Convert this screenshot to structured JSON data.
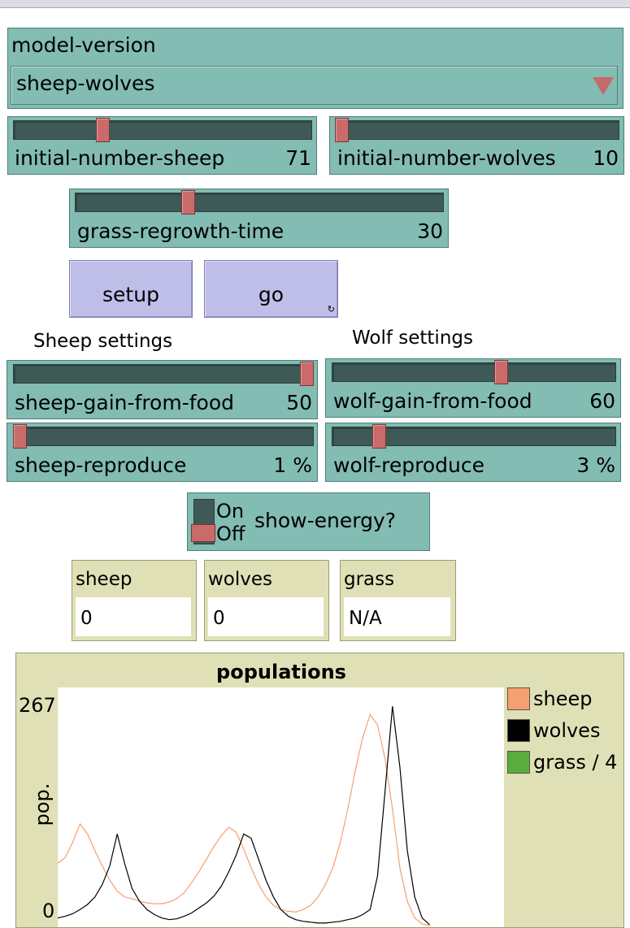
{
  "chooser": {
    "label": "model-version",
    "value": "sheep-wolves"
  },
  "sliders": {
    "initial_number_sheep": {
      "label": "initial-number-sheep",
      "value": "71",
      "fraction": 0.29
    },
    "initial_number_wolves": {
      "label": "initial-number-wolves",
      "value": "10",
      "fraction": 0.0
    },
    "grass_regrowth_time": {
      "label": "grass-regrowth-time",
      "value": "30",
      "fraction": 0.3
    },
    "sheep_gain_from_food": {
      "label": "sheep-gain-from-food",
      "value": "50",
      "fraction": 1.0
    },
    "wolf_gain_from_food": {
      "label": "wolf-gain-from-food",
      "value": "60",
      "fraction": 0.6
    },
    "sheep_reproduce": {
      "label": "sheep-reproduce",
      "value": "1 %",
      "fraction": 0.0
    },
    "wolf_reproduce": {
      "label": "wolf-reproduce",
      "value": "3 %",
      "fraction": 0.15
    }
  },
  "buttons": {
    "setup": "setup",
    "go": "go",
    "go_forever_icon": "forever-icon"
  },
  "sections": {
    "sheep": "Sheep settings",
    "wolf": "Wolf settings"
  },
  "switch": {
    "label": "show-energy?",
    "on": "On",
    "off": "Off",
    "state": "Off"
  },
  "monitors": [
    {
      "label": "sheep",
      "value": "0"
    },
    {
      "label": "wolves",
      "value": "0"
    },
    {
      "label": "grass",
      "value": "N/A"
    }
  ],
  "colors": {
    "teal": "#82bcb3",
    "button": "#bebee8",
    "monitor": "#e0e0b6",
    "handle": "#c96b6b",
    "sheep": "#f4a070",
    "wolves": "#000000",
    "grass": "#5aad3c"
  },
  "chart_data": {
    "type": "line",
    "title": "populations",
    "xlabel": "",
    "ylabel": "pop.",
    "ylim": [
      0,
      267
    ],
    "y_ticks": [
      "0",
      "267"
    ],
    "legend": {
      "placement": "right",
      "entries": [
        "sheep",
        "wolves",
        "grass / 4"
      ]
    },
    "series": [
      {
        "name": "sheep",
        "color": "#f4a070",
        "x": [
          0,
          10,
          20,
          30,
          40,
          50,
          60,
          70,
          80,
          90,
          100,
          110,
          120,
          130,
          140,
          150,
          160,
          170,
          180,
          190,
          200,
          210,
          220,
          230,
          240,
          250,
          260,
          270,
          280,
          290,
          300,
          310,
          320,
          330,
          340,
          350,
          360,
          370,
          380,
          390,
          400,
          410,
          420,
          430,
          440,
          450,
          460,
          470,
          480,
          490,
          500
        ],
        "y": [
          75,
          82,
          100,
          122,
          110,
          90,
          72,
          55,
          42,
          35,
          33,
          30,
          28,
          27,
          27,
          29,
          33,
          40,
          52,
          65,
          80,
          95,
          108,
          118,
          112,
          92,
          70,
          50,
          35,
          25,
          20,
          18,
          17,
          20,
          25,
          35,
          50,
          70,
          100,
          140,
          185,
          225,
          252,
          240,
          200,
          140,
          70,
          30,
          10,
          3,
          1
        ]
      },
      {
        "name": "wolves",
        "color": "#000000",
        "x": [
          0,
          10,
          20,
          30,
          40,
          50,
          60,
          70,
          80,
          90,
          100,
          110,
          120,
          130,
          140,
          150,
          160,
          170,
          180,
          190,
          200,
          210,
          220,
          230,
          240,
          250,
          260,
          270,
          280,
          290,
          300,
          310,
          320,
          330,
          340,
          350,
          360,
          370,
          380,
          390,
          400,
          410,
          420,
          430,
          440,
          450,
          460,
          470,
          480,
          490,
          500
        ],
        "y": [
          10,
          12,
          15,
          20,
          26,
          35,
          50,
          72,
          110,
          75,
          45,
          30,
          20,
          14,
          10,
          8,
          9,
          12,
          16,
          22,
          28,
          36,
          48,
          65,
          85,
          110,
          105,
          80,
          55,
          35,
          20,
          12,
          8,
          6,
          5,
          4,
          4,
          5,
          6,
          8,
          10,
          14,
          20,
          60,
          160,
          262,
          190,
          90,
          35,
          10,
          2
        ]
      },
      {
        "name": "grass / 4",
        "color": "#5aad3c",
        "x": [],
        "y": []
      }
    ]
  }
}
